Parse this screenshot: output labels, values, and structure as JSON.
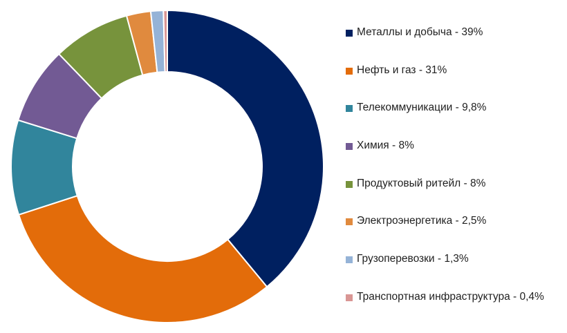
{
  "chart_data": {
    "type": "pie",
    "variant": "donut",
    "legend_position": "right",
    "series": [
      {
        "label": "Металлы и добыча - 39%",
        "value": 39,
        "color": "#002060"
      },
      {
        "label": "Нефть и газ - 31%",
        "value": 31,
        "color": "#E36C0A"
      },
      {
        "label": "Телекоммуникации - 9,8%",
        "value": 9.8,
        "color": "#31859C"
      },
      {
        "label": "Химия - 8%",
        "value": 8,
        "color": "#725A94"
      },
      {
        "label": "Продуктовый ритейл - 8%",
        "value": 8,
        "color": "#77933C"
      },
      {
        "label": "Электроэнергетика - 2,5%",
        "value": 2.5,
        "color": "#E08A3E"
      },
      {
        "label": "Грузоперевозки - 1,3%",
        "value": 1.3,
        "color": "#95B3D7"
      },
      {
        "label": "Транспортная инфраструктура - 0,4%",
        "value": 0.4,
        "color": "#D99694"
      }
    ]
  }
}
